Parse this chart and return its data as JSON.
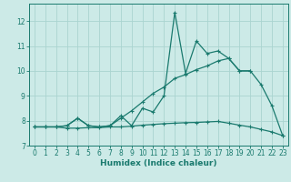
{
  "xlabel": "Humidex (Indice chaleur)",
  "x": [
    0,
    1,
    2,
    3,
    4,
    5,
    6,
    7,
    8,
    9,
    10,
    11,
    12,
    13,
    14,
    15,
    16,
    17,
    18,
    19,
    20,
    21,
    22,
    23
  ],
  "line1": [
    7.75,
    7.75,
    7.75,
    7.8,
    8.1,
    7.8,
    7.75,
    7.8,
    8.2,
    7.8,
    8.5,
    8.35,
    9.0,
    12.35,
    9.9,
    11.2,
    10.7,
    10.8,
    10.5,
    10.0,
    10.0,
    9.45,
    8.6,
    7.4
  ],
  "line2": [
    7.75,
    7.75,
    7.75,
    7.8,
    8.1,
    7.8,
    7.75,
    7.8,
    8.1,
    8.4,
    8.75,
    9.1,
    9.35,
    9.7,
    9.85,
    10.05,
    10.2,
    10.4,
    10.5,
    10.0,
    10.0,
    null,
    null,
    null
  ],
  "line3": [
    7.75,
    7.75,
    7.75,
    7.7,
    7.7,
    7.72,
    7.72,
    7.75,
    7.75,
    7.78,
    7.82,
    7.85,
    7.88,
    7.9,
    7.92,
    7.93,
    7.95,
    7.97,
    7.9,
    7.82,
    7.75,
    7.65,
    7.55,
    7.4
  ],
  "line_color": "#1a7a6e",
  "bg_color": "#cceae7",
  "grid_color": "#aad4d0",
  "ylim": [
    7.0,
    12.7
  ],
  "xlim": [
    -0.5,
    23.5
  ],
  "yticks": [
    7,
    8,
    9,
    10,
    11,
    12
  ],
  "xticks": [
    0,
    1,
    2,
    3,
    4,
    5,
    6,
    7,
    8,
    9,
    10,
    11,
    12,
    13,
    14,
    15,
    16,
    17,
    18,
    19,
    20,
    21,
    22,
    23
  ],
  "marker": "+",
  "marker_size": 3,
  "linewidth": 0.9,
  "tick_fontsize": 5.5,
  "label_fontsize": 6.5
}
